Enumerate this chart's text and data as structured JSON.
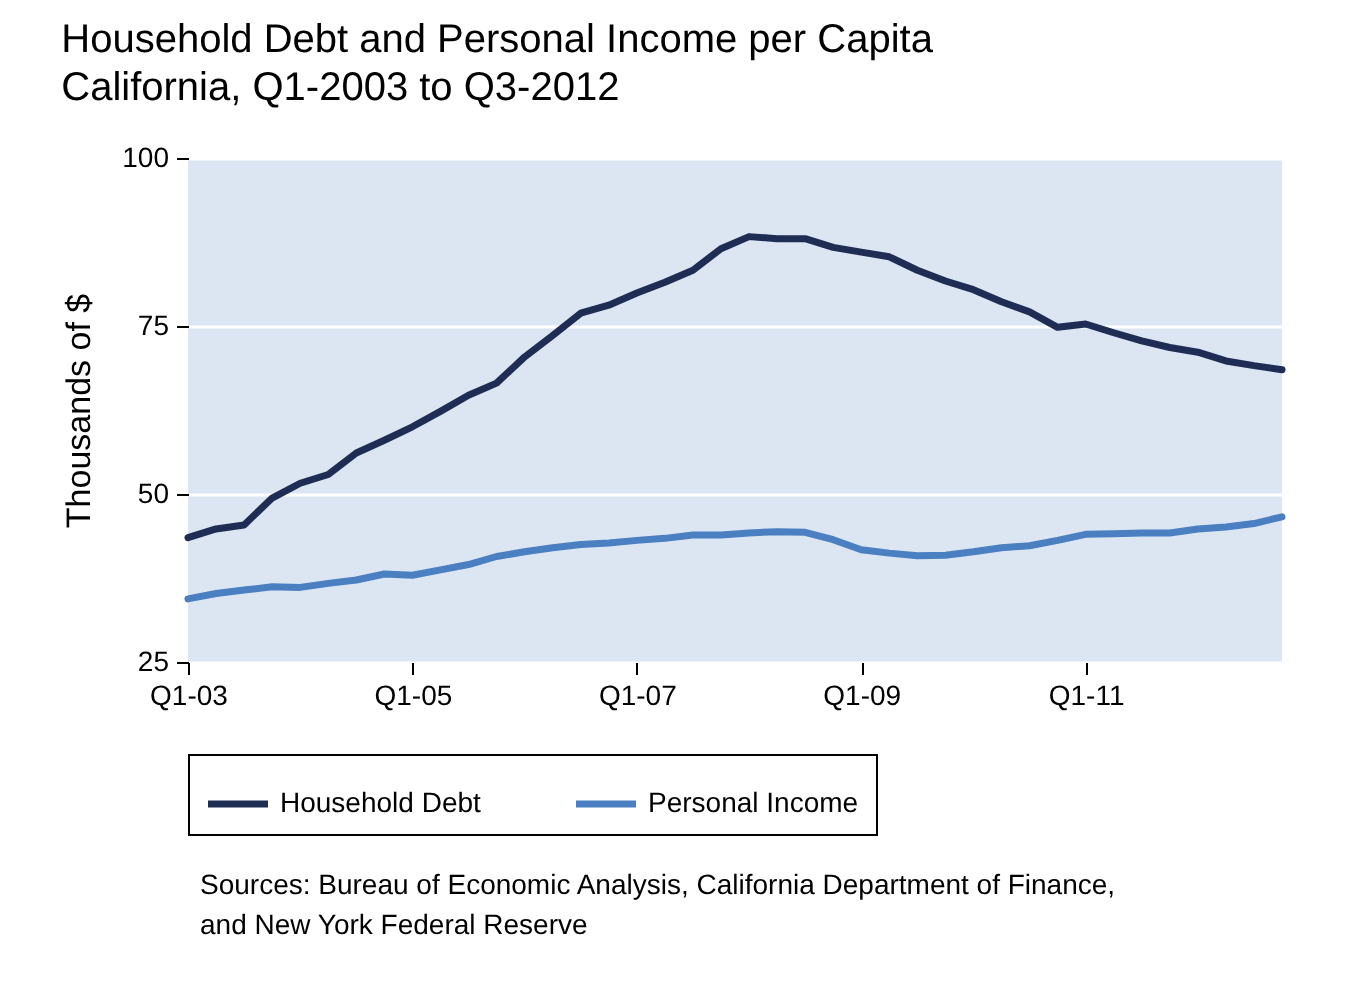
{
  "chart_data": {
    "type": "line",
    "title": "Household Debt and Personal Income per Capita",
    "subtitle": "California, Q1-2003 to Q3-2012",
    "ylabel": "Thousands of $",
    "categories": [
      "Q1-03",
      null,
      null,
      null,
      null,
      null,
      null,
      null,
      "Q1-05",
      null,
      null,
      null,
      null,
      null,
      null,
      null,
      "Q1-07",
      null,
      null,
      null,
      null,
      null,
      null,
      null,
      "Q1-09",
      null,
      null,
      null,
      null,
      null,
      null,
      null,
      "Q1-11",
      null,
      null,
      null,
      null,
      null,
      null,
      null
    ],
    "series": [
      {
        "name": "Household Debt",
        "color": "#1f2d55",
        "values": [
          43.5,
          44.8,
          45.4,
          49.4,
          51.6,
          52.9,
          56.1,
          58.0,
          60.0,
          62.3,
          64.7,
          66.5,
          70.4,
          73.6,
          76.9,
          78.1,
          79.9,
          81.5,
          83.3,
          86.5,
          88.3,
          88.0,
          88.0,
          86.7,
          86.0,
          85.3,
          83.3,
          81.7,
          80.4,
          78.6,
          77.1,
          74.8,
          75.3,
          74.0,
          72.8,
          71.8,
          71.1,
          69.8,
          69.1,
          68.5
        ]
      },
      {
        "name": "Personal Income",
        "color": "#4a7fc1",
        "values": [
          34.4,
          35.2,
          35.7,
          36.2,
          36.1,
          36.7,
          37.2,
          38.1,
          37.9,
          38.7,
          39.5,
          40.7,
          41.4,
          42.0,
          42.5,
          42.7,
          43.1,
          43.4,
          43.9,
          43.9,
          44.2,
          44.4,
          44.3,
          43.2,
          41.7,
          41.2,
          40.8,
          40.9,
          41.4,
          42.0,
          42.3,
          43.1,
          44.0,
          44.1,
          44.2,
          44.2,
          44.8,
          45.1,
          45.6,
          46.6
        ]
      }
    ],
    "ylim": [
      25,
      100
    ],
    "yticks": [
      25,
      50,
      75,
      100
    ],
    "grid": "y",
    "legend": "bottom",
    "line_style": "solid",
    "annotations": [
      "Sources: Bureau of Economic Analysis, California Department of Finance,\nand New York Federal Reserve"
    ]
  }
}
